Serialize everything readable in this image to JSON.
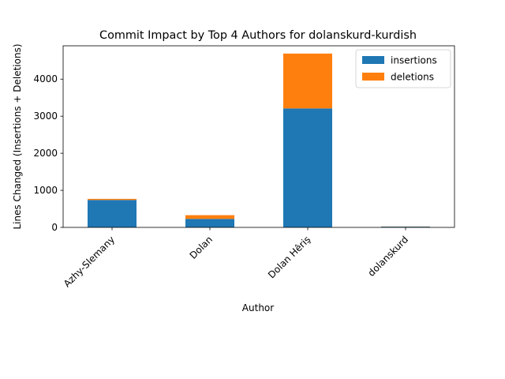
{
  "chart_data": {
    "type": "bar",
    "stacked": true,
    "title": "Commit Impact by Top 4 Authors for dolanskurd-kurdish",
    "xlabel": "Author",
    "ylabel": "Lines Changed (Insertions + Deletions)",
    "categories": [
      "Azhy-Slemany",
      "Dolan",
      "Dolan Hêriş",
      "dolanskurd"
    ],
    "series": [
      {
        "name": "insertions",
        "color": "#1f77b4",
        "values": [
          740,
          230,
          3210,
          20
        ]
      },
      {
        "name": "deletions",
        "color": "#ff7f0e",
        "values": [
          30,
          100,
          1480,
          5
        ]
      }
    ],
    "ylim": [
      0,
      4900
    ],
    "yticks": [
      0,
      1000,
      2000,
      3000,
      4000
    ],
    "grid": false,
    "legend_position": "top-right"
  }
}
